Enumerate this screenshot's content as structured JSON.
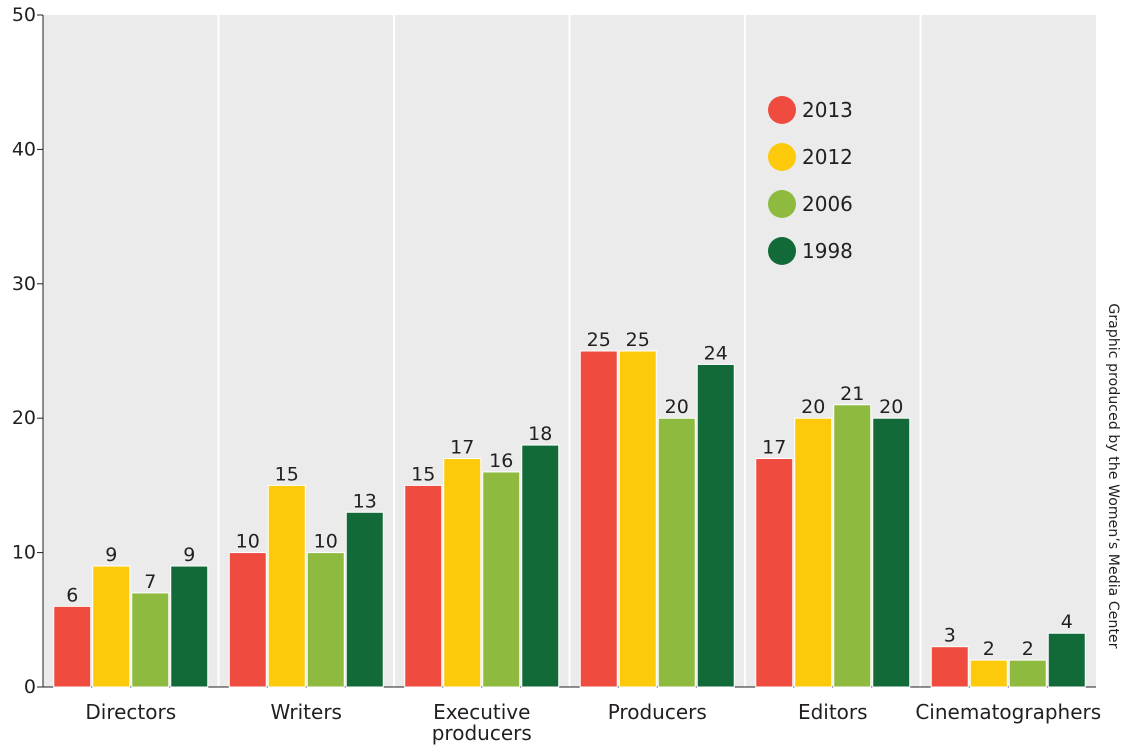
{
  "chart_data": {
    "type": "bar",
    "categories": [
      "Directors",
      "Writers",
      "Executive producers",
      "Producers",
      "Editors",
      "Cinematographers"
    ],
    "category_lines": [
      [
        "Directors"
      ],
      [
        "Writers"
      ],
      [
        "Executive",
        "producers"
      ],
      [
        "Producers"
      ],
      [
        "Editors"
      ],
      [
        "Cinematographers"
      ]
    ],
    "series": [
      {
        "name": "2013",
        "color": "#ef4b3f",
        "values": [
          6,
          10,
          15,
          25,
          17,
          3
        ]
      },
      {
        "name": "2012",
        "color": "#fcc90b",
        "values": [
          9,
          15,
          17,
          25,
          20,
          2
        ]
      },
      {
        "name": "2006",
        "color": "#8dba3f",
        "values": [
          7,
          10,
          16,
          20,
          21,
          2
        ]
      },
      {
        "name": "1998",
        "color": "#126a38",
        "values": [
          9,
          13,
          18,
          24,
          20,
          4
        ]
      }
    ],
    "ylim": [
      0,
      50
    ],
    "yticks": [
      0,
      10,
      20,
      30,
      40,
      50
    ],
    "data_labels": true,
    "legend_position": "top-right",
    "background": "#ebebeb",
    "grid": "vertical separators between categories"
  },
  "credit": "Graphic produced by the Women’s Media Center"
}
